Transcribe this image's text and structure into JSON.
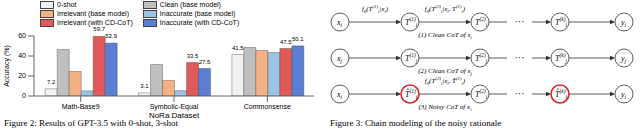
{
  "chart_data": {
    "type": "bar",
    "x_label": "NoRa Dataset",
    "y_label": "Accuracy (%)",
    "categories": [
      "Math-Base9",
      "Symbolic-Equal",
      "Commonsense"
    ],
    "ylim": [
      0,
      60
    ],
    "yticks": [
      0,
      20,
      40,
      60
    ],
    "grid": false,
    "legend": "top",
    "series": [
      {
        "name": "0-shot",
        "color": "#f2f2f2",
        "values": [
          7.2,
          3.1,
          41.5
        ],
        "data_labels": true
      },
      {
        "name": "Clean (base model)",
        "color": "#bfbfbf",
        "values": [
          46.5,
          31.5,
          48.5
        ]
      },
      {
        "name": "Irrelevant (base model)",
        "color": "#f4b183",
        "values": [
          24.5,
          15.5,
          45.5
        ]
      },
      {
        "name": "Inaccurate (base model)",
        "color": "#9dc3e6",
        "values": [
          5.1,
          5.3,
          43.5
        ]
      },
      {
        "name": "Irrelevant (with CD-CoT)",
        "color": "#e05a5a",
        "values": [
          59.7,
          33.5,
          47.5
        ],
        "data_labels": true
      },
      {
        "name": "Inaccurate (with CD-CoT)",
        "color": "#5b7fd6",
        "values": [
          52.9,
          27.5,
          50.1
        ],
        "data_labels": true
      }
    ]
  },
  "diagram": {
    "gap_text": "···",
    "rows": [
      {
        "nodes": [
          {
            "base": "x",
            "sub": "i"
          },
          {
            "base": "T",
            "sub": "i",
            "sup": "(1)"
          },
          {
            "base": "T",
            "sub": "i",
            "sup": "(2)"
          },
          {
            "base": "T",
            "sub": "i",
            "sup": "(k)"
          },
          {
            "base": "y",
            "sub": "i"
          }
        ],
        "edges": [
          {
            "from": 0,
            "label": [
              {
                "t": "f",
                "sub": "θ"
              },
              {
                "t": "(T",
                "sub": "i",
                "sup": "(1)"
              },
              {
                "t": "|x",
                "sub": "i"
              },
              {
                "t": ")"
              }
            ]
          },
          {
            "from": 1,
            "label": [
              {
                "t": "f",
                "sub": "θ"
              },
              {
                "t": "(T",
                "sub": "i",
                "sup": "(2)"
              },
              {
                "t": "|x",
                "sub": "i"
              },
              {
                "t": ", T",
                "sub": "i",
                "sup": "(1)"
              },
              {
                "t": ")"
              }
            ]
          }
        ],
        "caption": [
          {
            "t": "(1) Clean CoT of x",
            "sub": "i"
          }
        ]
      },
      {
        "nodes": [
          {
            "base": "x",
            "sub": "j"
          },
          {
            "base": "T",
            "sub": "j",
            "sup": "(1)"
          },
          {
            "base": "T",
            "sub": "j",
            "sup": "(2)"
          },
          {
            "base": "T",
            "sub": "j",
            "sup": "(k)"
          },
          {
            "base": "y",
            "sub": "j"
          }
        ],
        "edges": [],
        "caption": [
          {
            "t": "(2) Clean CoT of x",
            "sub": "j"
          }
        ]
      },
      {
        "nodes": [
          {
            "base": "x",
            "sub": "i"
          },
          {
            "base": "T̂",
            "sub": "i",
            "sup": "(1)",
            "noisy": true
          },
          {
            "base": "T",
            "sub": "i",
            "sup": "(2)"
          },
          {
            "base": "T̂",
            "sub": "i",
            "sup": "(k)",
            "noisy": true
          },
          {
            "base": "y",
            "sub": "i"
          }
        ],
        "edges": [
          {
            "from": 1,
            "label": [
              {
                "t": "f",
                "sub": "θ"
              },
              {
                "t": "(T",
                "sub": "i",
                "sup": "(2)"
              },
              {
                "t": "|x",
                "sub": "i"
              },
              {
                "t": ", T̂",
                "sub": "i",
                "sup": "(1)"
              },
              {
                "t": ")"
              }
            ]
          }
        ],
        "caption": [
          {
            "t": "(3) Noisy CoT of x",
            "sub": "i"
          }
        ]
      }
    ]
  },
  "captions": [
    "Figure 2: Results of GPT-3.5 with 0-shot, 3-shot",
    "Figure 3: Chain modeling of the noisy rationale"
  ]
}
